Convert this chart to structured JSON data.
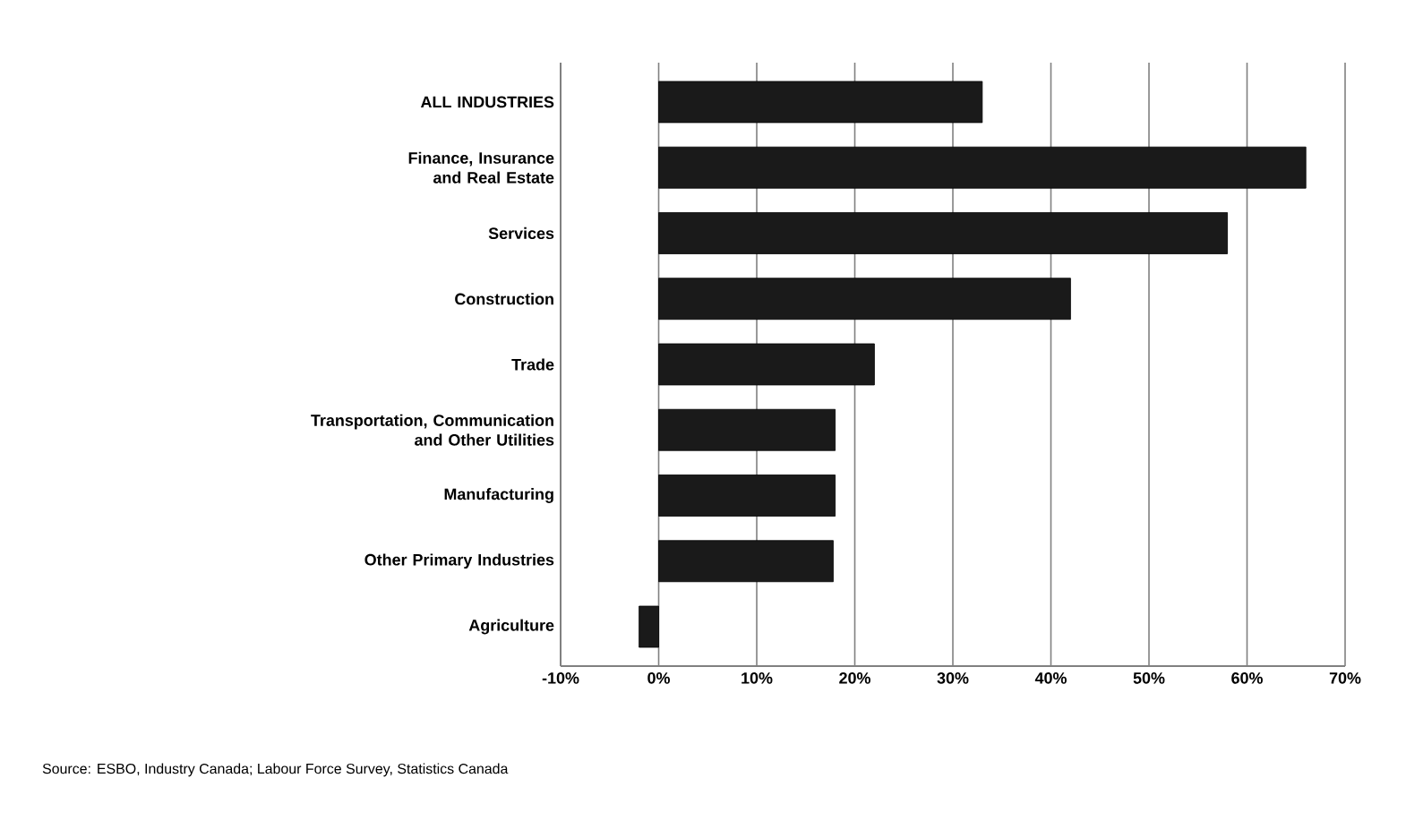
{
  "chart_data": {
    "type": "bar",
    "orientation": "horizontal",
    "categories": [
      "ALL INDUSTRIES",
      "Finance, Insurance and Real Estate",
      "Services",
      "Construction",
      "Trade",
      "Transportation, Communication and Other Utilities",
      "Manufacturing",
      "Other Primary Industries",
      "Agriculture"
    ],
    "values": [
      33,
      66,
      58,
      42,
      22,
      18,
      18,
      17.8,
      -2
    ],
    "color": "#1a1a1a",
    "xlim": [
      -10,
      70
    ],
    "xticks": [
      {
        "value": -10,
        "label": "-10%"
      },
      {
        "value": 0,
        "label": "0%"
      },
      {
        "value": 10,
        "label": "10%"
      },
      {
        "value": 20,
        "label": "20%"
      },
      {
        "value": 30,
        "label": "30%"
      },
      {
        "value": 40,
        "label": "40%"
      },
      {
        "value": 50,
        "label": "50%"
      },
      {
        "value": 60,
        "label": "60%"
      },
      {
        "value": 70,
        "label": "70%"
      }
    ],
    "grid": "x",
    "annotations": [
      "Source: ESBO, Industry Canada; Labour Force Survey, Statistics Canada"
    ]
  }
}
